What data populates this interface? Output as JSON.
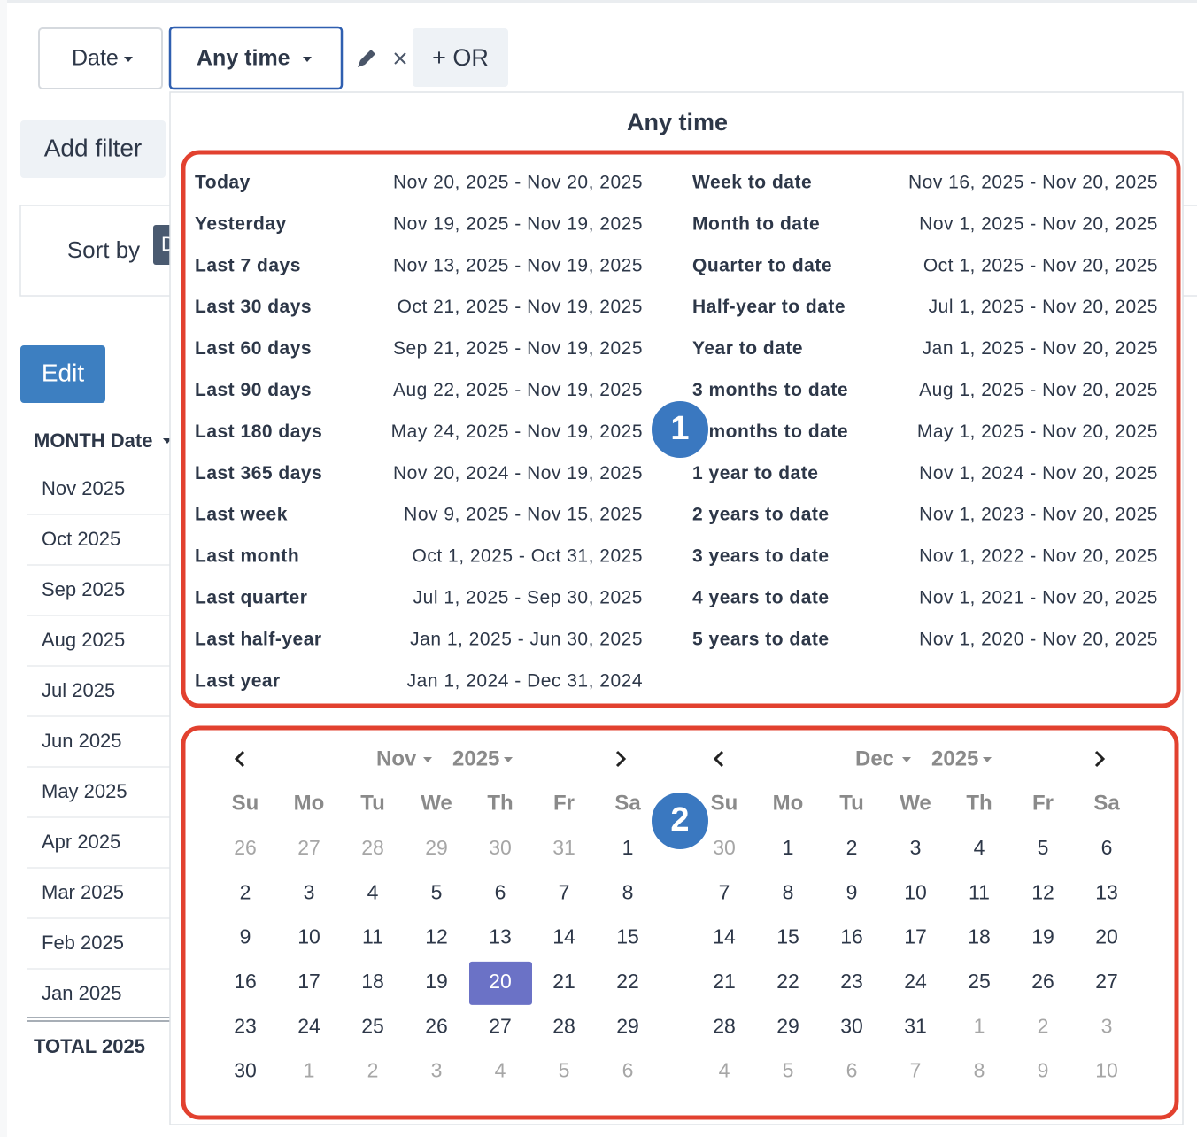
{
  "toolbar": {
    "field_button": "Date",
    "range_button": "Any time",
    "or_button": "+ OR"
  },
  "sidebar": {
    "add_filter": "Add filter",
    "sort_by": "Sort by",
    "sort_value": "D",
    "edit": "Edit",
    "table": {
      "header": "MONTH Date",
      "rows": [
        "Nov 2025",
        "Oct 2025",
        "Sep 2025",
        "Aug 2025",
        "Jul 2025",
        "Jun 2025",
        "May 2025",
        "Apr 2025",
        "Mar 2025",
        "Feb 2025",
        "Jan 2025"
      ],
      "total": "TOTAL 2025"
    }
  },
  "popup": {
    "title": "Any time",
    "presets_left": [
      {
        "label": "Today",
        "range": "Nov 20, 2025 - Nov 20, 2025"
      },
      {
        "label": "Yesterday",
        "range": "Nov 19, 2025 - Nov 19, 2025"
      },
      {
        "label": "Last 7 days",
        "range": "Nov 13, 2025 - Nov 19, 2025"
      },
      {
        "label": "Last 30 days",
        "range": "Oct 21, 2025 - Nov 19, 2025"
      },
      {
        "label": "Last 60 days",
        "range": "Sep 21, 2025 - Nov 19, 2025"
      },
      {
        "label": "Last 90 days",
        "range": "Aug 22, 2025 - Nov 19, 2025"
      },
      {
        "label": "Last 180 days",
        "range": "May 24, 2025 - Nov 19, 2025"
      },
      {
        "label": "Last 365 days",
        "range": "Nov 20, 2024 - Nov 19, 2025"
      },
      {
        "label": "Last week",
        "range": "Nov 9, 2025 - Nov 15, 2025"
      },
      {
        "label": "Last month",
        "range": "Oct 1, 2025 - Oct 31, 2025"
      },
      {
        "label": "Last quarter",
        "range": "Jul 1, 2025 - Sep 30, 2025"
      },
      {
        "label": "Last half-year",
        "range": "Jan 1, 2025 - Jun 30, 2025"
      },
      {
        "label": "Last year",
        "range": "Jan 1, 2024 - Dec 31, 2024"
      }
    ],
    "presets_right": [
      {
        "label": "Week to date",
        "range": "Nov 16, 2025 - Nov 20, 2025"
      },
      {
        "label": "Month to date",
        "range": "Nov 1, 2025 - Nov 20, 2025"
      },
      {
        "label": "Quarter to date",
        "range": "Oct 1, 2025 - Nov 20, 2025"
      },
      {
        "label": "Half-year to date",
        "range": "Jul 1, 2025 - Nov 20, 2025"
      },
      {
        "label": "Year to date",
        "range": "Jan 1, 2025 - Nov 20, 2025"
      },
      {
        "label": "3 months to date",
        "range": "Aug 1, 2025 - Nov 20, 2025"
      },
      {
        "label": "6 months to date",
        "range": "May 1, 2025 - Nov 20, 2025"
      },
      {
        "label": "1 year to date",
        "range": "Nov 1, 2024 - Nov 20, 2025"
      },
      {
        "label": "2 years to date",
        "range": "Nov 1, 2023 - Nov 20, 2025"
      },
      {
        "label": "3 years to date",
        "range": "Nov 1, 2022 - Nov 20, 2025"
      },
      {
        "label": "4 years to date",
        "range": "Nov 1, 2021 - Nov 20, 2025"
      },
      {
        "label": "5 years to date",
        "range": "Nov 1, 2020 - Nov 20, 2025"
      }
    ],
    "calendars": [
      {
        "month": "Nov",
        "year": "2025",
        "weekdays": [
          "Su",
          "Mo",
          "Tu",
          "We",
          "Th",
          "Fr",
          "Sa"
        ],
        "weeks": [
          [
            26,
            27,
            28,
            29,
            30,
            31,
            1
          ],
          [
            2,
            3,
            4,
            5,
            6,
            7,
            8
          ],
          [
            9,
            10,
            11,
            12,
            13,
            14,
            15
          ],
          [
            16,
            17,
            18,
            19,
            20,
            21,
            22
          ],
          [
            23,
            24,
            25,
            26,
            27,
            28,
            29
          ],
          [
            30,
            1,
            2,
            3,
            4,
            5,
            6
          ]
        ]
      },
      {
        "month": "Dec",
        "year": "2025",
        "weekdays": [
          "Su",
          "Mo",
          "Tu",
          "We",
          "Th",
          "Fr",
          "Sa"
        ],
        "weeks": [
          [
            30,
            1,
            2,
            3,
            4,
            5,
            6
          ],
          [
            7,
            8,
            9,
            10,
            11,
            12,
            13
          ],
          [
            14,
            15,
            16,
            17,
            18,
            19,
            20
          ],
          [
            21,
            22,
            23,
            24,
            25,
            26,
            27
          ],
          [
            28,
            29,
            30,
            31,
            1,
            2,
            3
          ],
          [
            4,
            5,
            6,
            7,
            8,
            9,
            10
          ]
        ]
      }
    ]
  },
  "annotations": [
    "1",
    "2"
  ]
}
